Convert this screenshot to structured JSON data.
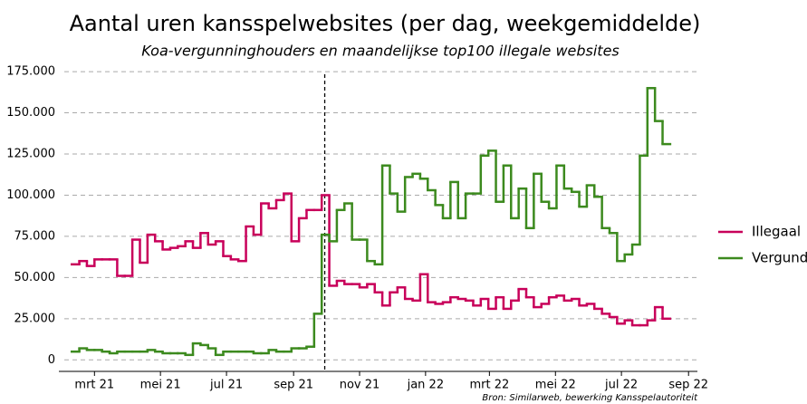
{
  "chart_data": {
    "type": "step",
    "title": "Aantal uren kansspelwebsites (per dag, weekgemiddelde)",
    "subtitle": "Koa-vergunninghouders en maandelijkse top100 illegale websites",
    "source": "Bron: Similarweb, bewerking Kansspelautoriteit",
    "x": [
      -3,
      -2,
      -1,
      0,
      1,
      2,
      3,
      4,
      5,
      6,
      7,
      8,
      9,
      10,
      11,
      12,
      13,
      14,
      15,
      16,
      17,
      18,
      19,
      20,
      21,
      22,
      23,
      24,
      25,
      26,
      27,
      28,
      29,
      30,
      31,
      32,
      33,
      34,
      35,
      36,
      37,
      38,
      39,
      40,
      41,
      42,
      43,
      44,
      45,
      46,
      47,
      48,
      49,
      50,
      51,
      52,
      53,
      54,
      55,
      56,
      57,
      58,
      59,
      60,
      61,
      62,
      63,
      64,
      65,
      66,
      67,
      68,
      69,
      70,
      71,
      72,
      73,
      74,
      75
    ],
    "series": [
      {
        "name": "Illegaal",
        "color": "#c8005a",
        "values": [
          58000,
          60000,
          57000,
          61000,
          61000,
          61000,
          51000,
          51000,
          73000,
          59000,
          76000,
          72000,
          67000,
          68000,
          69000,
          72000,
          68000,
          77000,
          70000,
          72000,
          63000,
          61000,
          60000,
          81000,
          76000,
          95000,
          92000,
          97000,
          101000,
          72000,
          86000,
          91000,
          91000,
          100000,
          45000,
          48000,
          46000,
          46000,
          44000,
          46000,
          41000,
          33000,
          41000,
          44000,
          37000,
          36000,
          52000,
          35000,
          34000,
          35000,
          38000,
          37000,
          36000,
          33000,
          37000,
          31000,
          38000,
          31000,
          36000,
          43000,
          38000,
          32000,
          34000,
          38000,
          39000,
          36000,
          37000,
          33000,
          34000,
          31000,
          28000,
          26000,
          22000,
          24000,
          21000,
          21000,
          24000,
          32000,
          25000
        ]
      },
      {
        "name": "Vergund",
        "color": "#3c8a1e",
        "values": [
          5000,
          7000,
          6000,
          6000,
          5000,
          4000,
          5000,
          5000,
          5000,
          5000,
          6000,
          5000,
          4000,
          4000,
          4000,
          3000,
          10000,
          9000,
          7000,
          3000,
          5000,
          5000,
          5000,
          5000,
          4000,
          4000,
          6000,
          5000,
          5000,
          7000,
          7000,
          8000,
          28000,
          76000,
          72000,
          91000,
          95000,
          73000,
          73000,
          60000,
          58000,
          118000,
          101000,
          90000,
          111000,
          113000,
          110000,
          103000,
          94000,
          86000,
          108000,
          86000,
          101000,
          101000,
          124000,
          127000,
          96000,
          118000,
          86000,
          104000,
          80000,
          113000,
          96000,
          92000,
          118000,
          104000,
          102000,
          93000,
          106000,
          99000,
          80000,
          77000,
          60000,
          64000,
          70000,
          124000,
          165000,
          145000,
          131000
        ]
      }
    ],
    "xlim": [
      -4.7,
      79.6
    ],
    "xticks": [
      {
        "value": 0,
        "label": "mrt 21"
      },
      {
        "value": 8.71,
        "label": "mei 21"
      },
      {
        "value": 17.43,
        "label": "jul 21"
      },
      {
        "value": 26.29,
        "label": "sep 21"
      },
      {
        "value": 35,
        "label": "nov 21"
      },
      {
        "value": 43.71,
        "label": "jan 22"
      },
      {
        "value": 52.14,
        "label": "mrt 22"
      },
      {
        "value": 60.86,
        "label": "mei 22"
      },
      {
        "value": 69.57,
        "label": "jul 22"
      },
      {
        "value": 78.43,
        "label": "sep 22"
      }
    ],
    "ylim": [
      -7000,
      180000
    ],
    "yticks": [
      0,
      {
        "value": 25000,
        "label": "25.000"
      },
      {
        "value": 50000,
        "label": "50.000"
      },
      {
        "value": 75000,
        "label": "75.000"
      },
      {
        "value": 100000,
        "label": "100.000"
      },
      {
        "value": 125000,
        "label": "125.000"
      },
      {
        "value": 150000,
        "label": "150.000"
      },
      {
        "value": 175000,
        "label": "175.000"
      }
    ],
    "vline": 30.4,
    "grid": true,
    "legend": "right"
  }
}
